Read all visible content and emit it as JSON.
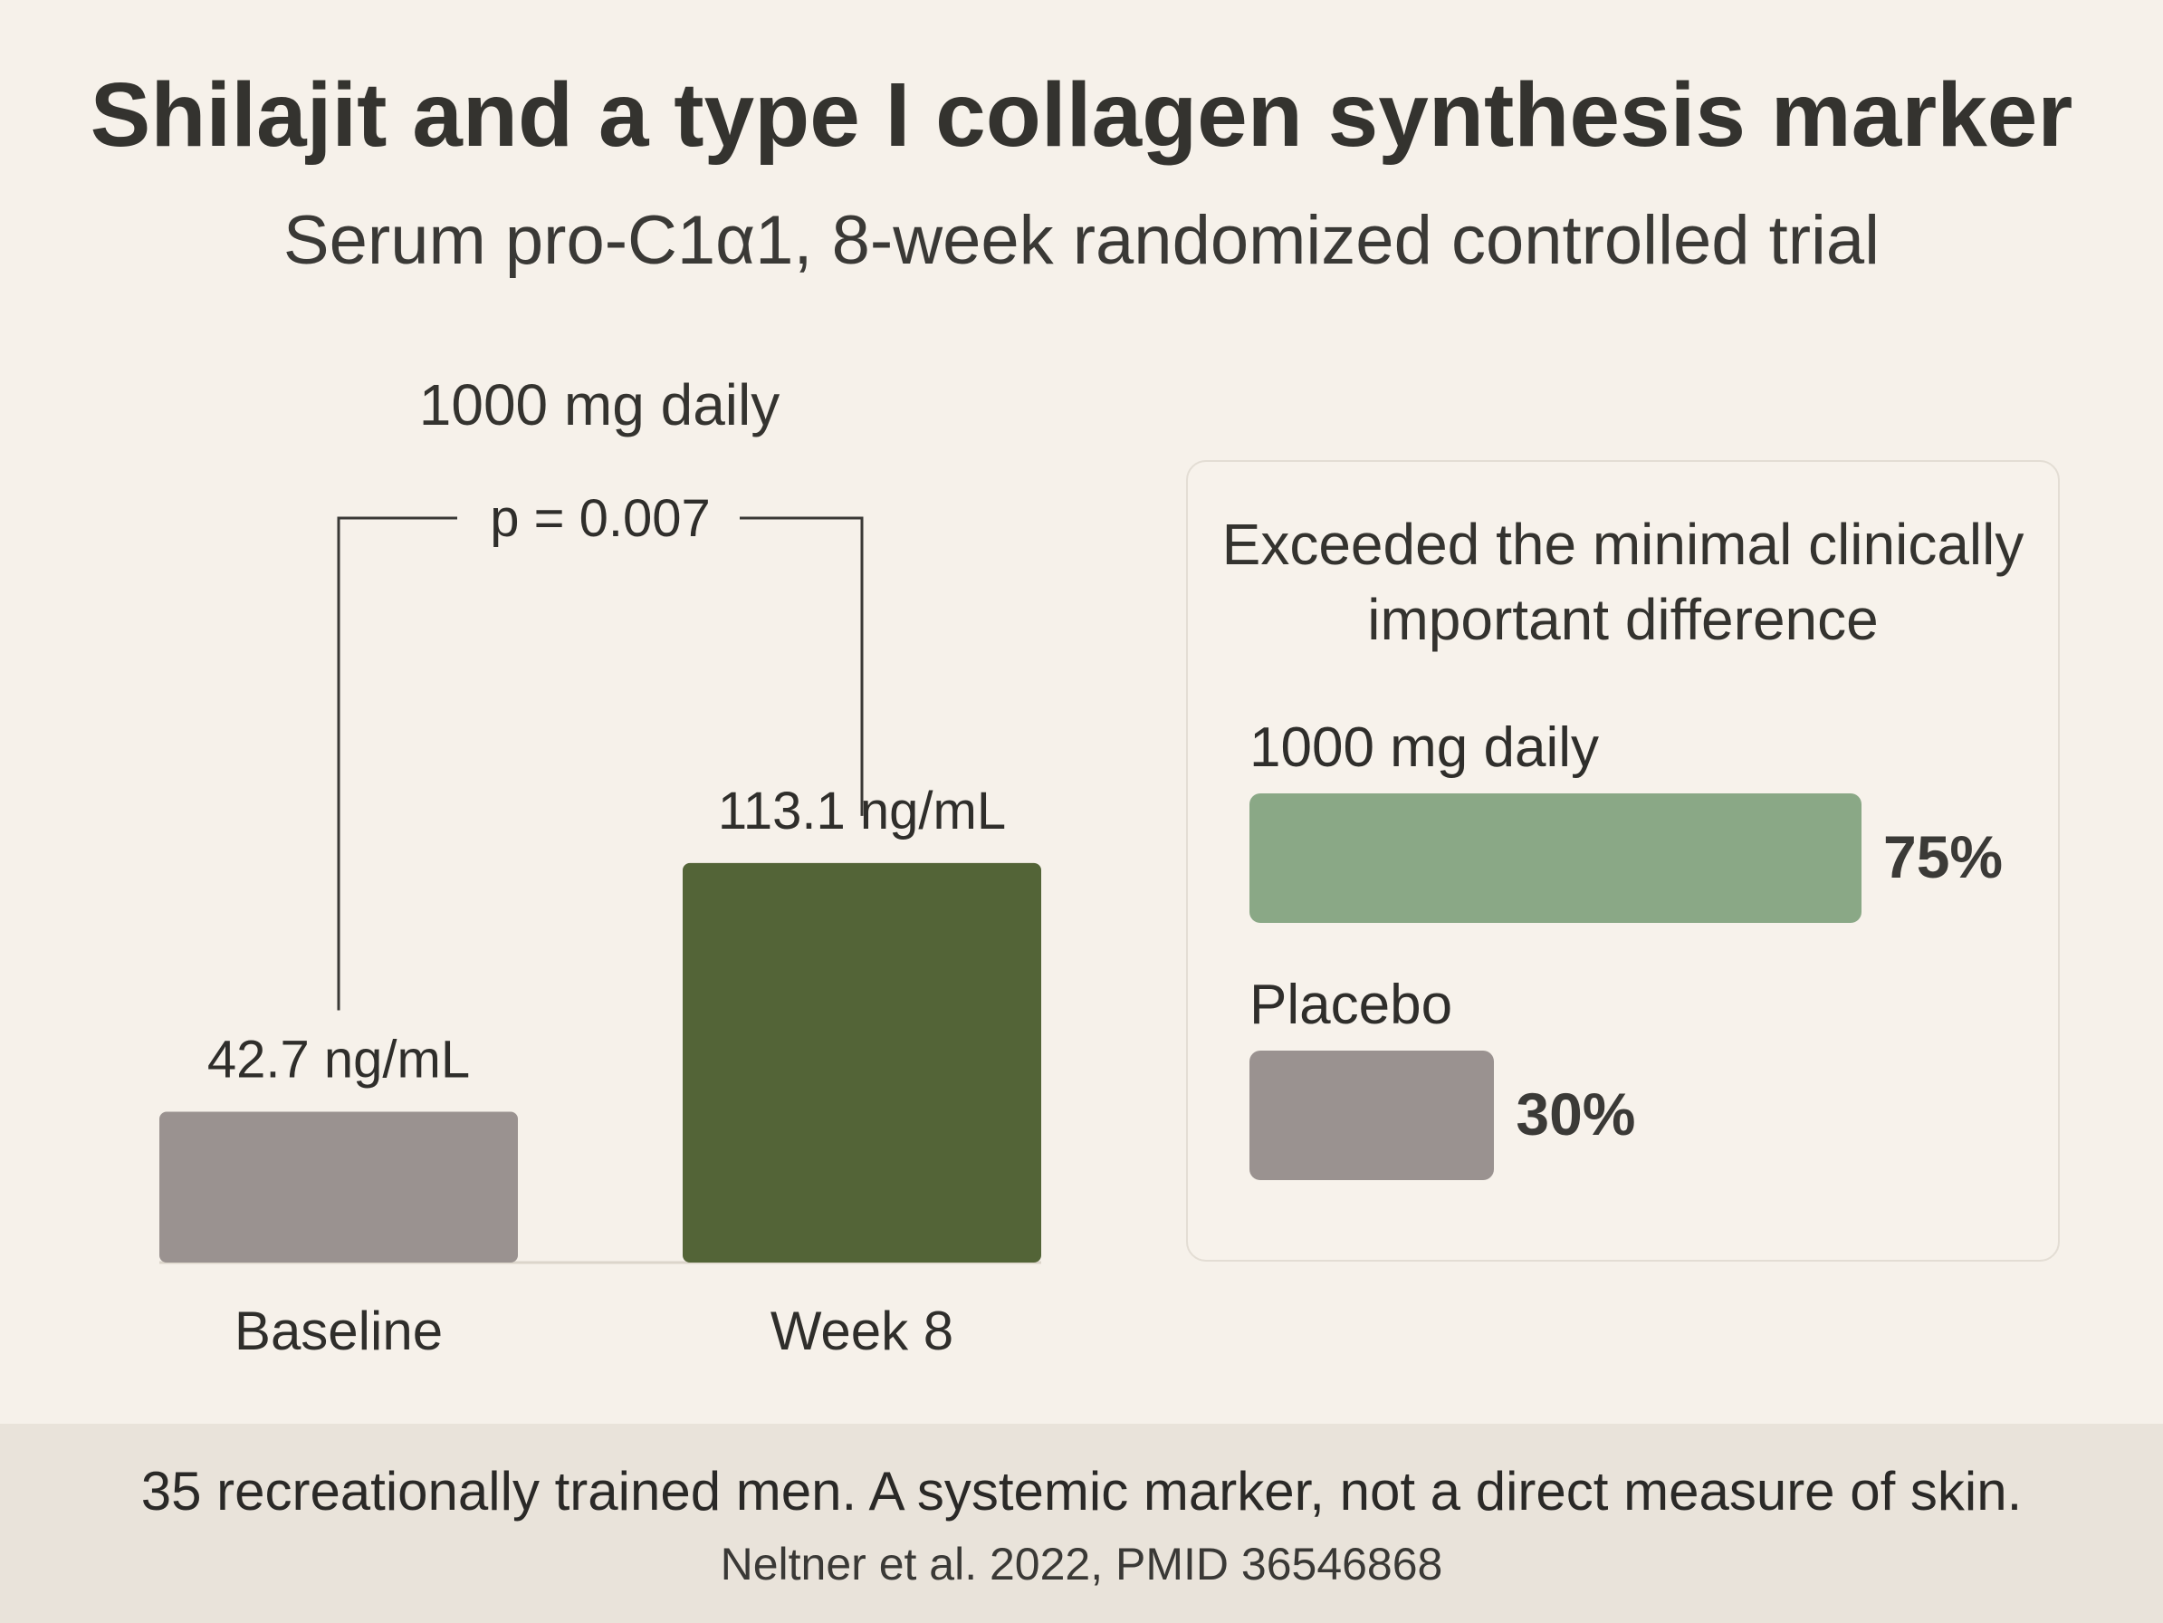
{
  "chart_data": [
    {
      "type": "bar",
      "title": "Shilajit and a type I collagen synthesis marker",
      "subtitle": "Serum pro-C1α1, 8-week randomized controlled trial",
      "group_label": "1000 mg daily",
      "categories": [
        "Baseline",
        "Week 8"
      ],
      "values": [
        42.7,
        113.1
      ],
      "value_labels": [
        "42.7 ng/mL",
        "113.1 ng/mL"
      ],
      "unit": "ng/mL",
      "annotation": "p = 0.007",
      "colors": [
        "#9a9290",
        "#536437"
      ],
      "grid": false
    },
    {
      "type": "bar",
      "orientation": "horizontal",
      "title": "Exceeded the minimal clinically important difference",
      "categories": [
        "1000 mg daily",
        "Placebo"
      ],
      "values": [
        75,
        30
      ],
      "value_labels": [
        "75%",
        "30%"
      ],
      "unit": "%",
      "colors": [
        "#8aa886",
        "#9a9290"
      ]
    }
  ],
  "footer": {
    "note": "35 recreationally trained men. A systemic marker, not a direct measure of skin.",
    "citation": "Neltner et al. 2022, PMID 36546868"
  }
}
